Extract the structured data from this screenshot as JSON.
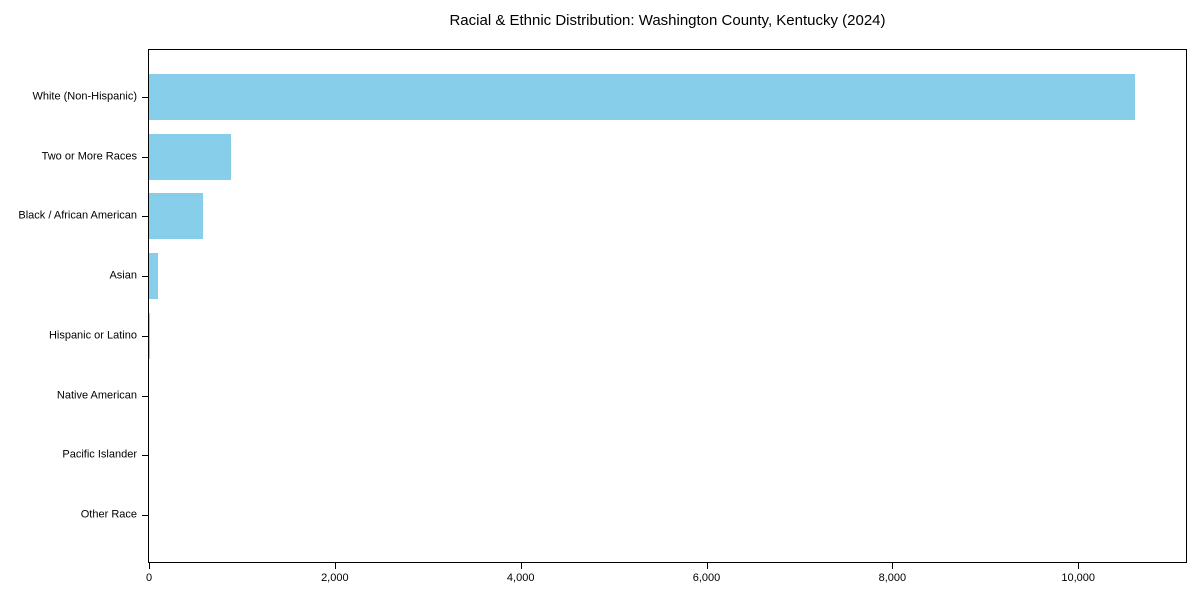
{
  "chart_data": {
    "type": "bar",
    "orientation": "horizontal",
    "title": "Racial & Ethnic Distribution: Washington County, Kentucky (2024)",
    "categories": [
      "White (Non-Hispanic)",
      "Two or More Races",
      "Black / African American",
      "Asian",
      "Hispanic or Latino",
      "Native American",
      "Pacific Islander",
      "Other Race"
    ],
    "values": [
      10610,
      885,
      577,
      95,
      15,
      0,
      0,
      0
    ],
    "xlabel": "",
    "ylabel": "",
    "xlim": [
      0,
      11160
    ],
    "xticks": [
      0,
      2000,
      4000,
      6000,
      8000,
      10000
    ],
    "xtick_labels": [
      "0",
      "2,000",
      "4,000",
      "6,000",
      "8,000",
      "10,000"
    ],
    "bar_color": "#87CEEB",
    "frame_color": "#000000",
    "background_color": "#ffffff",
    "grid": false,
    "legend_position": "none"
  }
}
